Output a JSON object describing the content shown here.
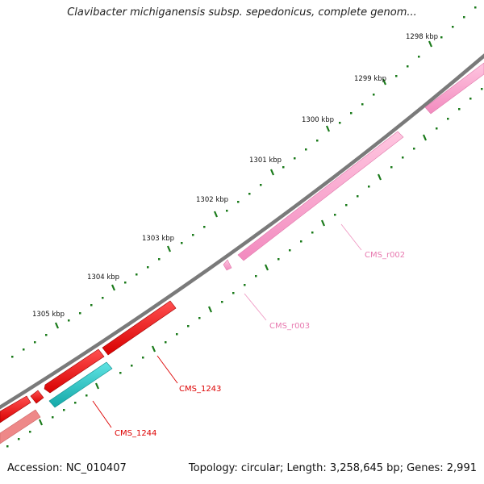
{
  "title": "Clavibacter michiganensis subsp. sepedonicus, complete genom...",
  "footer": {
    "accession": "Accession: NC_010407",
    "topology": "Topology: circular; Length: 3,258,645 bp; Genes: 2,991"
  },
  "ruler_labels": [
    "1298 kbp",
    "1299 kbp",
    "1300 kbp",
    "1301 kbp",
    "1302 kbp",
    "1303 kbp",
    "1304 kbp",
    "1305 kbp"
  ],
  "feature_labels": [
    "CMS_r002",
    "CMS_r003",
    "CMS_1243",
    "CMS_1244"
  ],
  "colors": {
    "backbone": "#7a7a7a",
    "ticks": "#1a7a1a",
    "rrna": "#f7a6c9",
    "rrna_label": "#e87ab0",
    "gene": "#ff1a1a",
    "gene_label": "#dd0000",
    "cds": "#22c8c8",
    "gene_faded": "#ee8888"
  }
}
